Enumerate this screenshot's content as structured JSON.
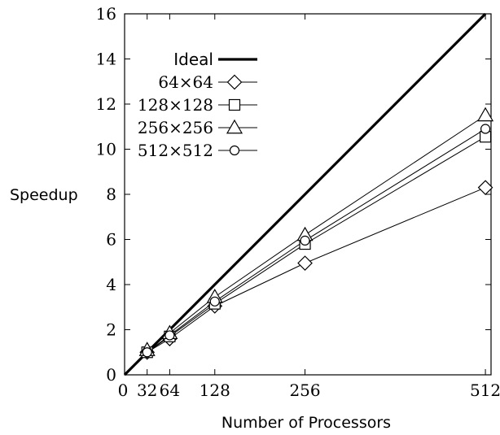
{
  "chart_data": {
    "type": "line",
    "title": "",
    "xlabel": "Number of Processors",
    "ylabel": "Speedup",
    "xlim": [
      0,
      520
    ],
    "ylim": [
      0,
      16
    ],
    "x_ticks": [
      0,
      32,
      64,
      128,
      256,
      512
    ],
    "x_tick_labels": [
      "0",
      "32",
      "64",
      "128",
      "256",
      "512"
    ],
    "y_ticks": [
      0,
      2,
      4,
      6,
      8,
      10,
      12,
      14,
      16
    ],
    "y_tick_labels": [
      "0",
      "2",
      "4",
      "6",
      "8",
      "10",
      "12",
      "14",
      "16"
    ],
    "grid": false,
    "legend_position": "top-left",
    "ideal": {
      "name": "Ideal",
      "x": [
        0,
        512
      ],
      "y": [
        0,
        16
      ]
    },
    "series": [
      {
        "name": "64×64",
        "marker": "diamond",
        "x": [
          32,
          64,
          128,
          256,
          512
        ],
        "y": [
          1.0,
          1.6,
          3.05,
          4.95,
          8.3
        ]
      },
      {
        "name": "128×128",
        "marker": "square",
        "x": [
          32,
          64,
          128,
          256,
          512
        ],
        "y": [
          1.0,
          1.7,
          3.15,
          5.8,
          10.55
        ]
      },
      {
        "name": "256×256",
        "marker": "triangle",
        "x": [
          32,
          64,
          128,
          256,
          512
        ],
        "y": [
          1.1,
          1.85,
          3.45,
          6.2,
          11.5
        ]
      },
      {
        "name": "512×512",
        "marker": "circle",
        "x": [
          32,
          64,
          128,
          256,
          512
        ],
        "y": [
          1.0,
          1.75,
          3.25,
          5.95,
          10.9
        ]
      }
    ]
  }
}
